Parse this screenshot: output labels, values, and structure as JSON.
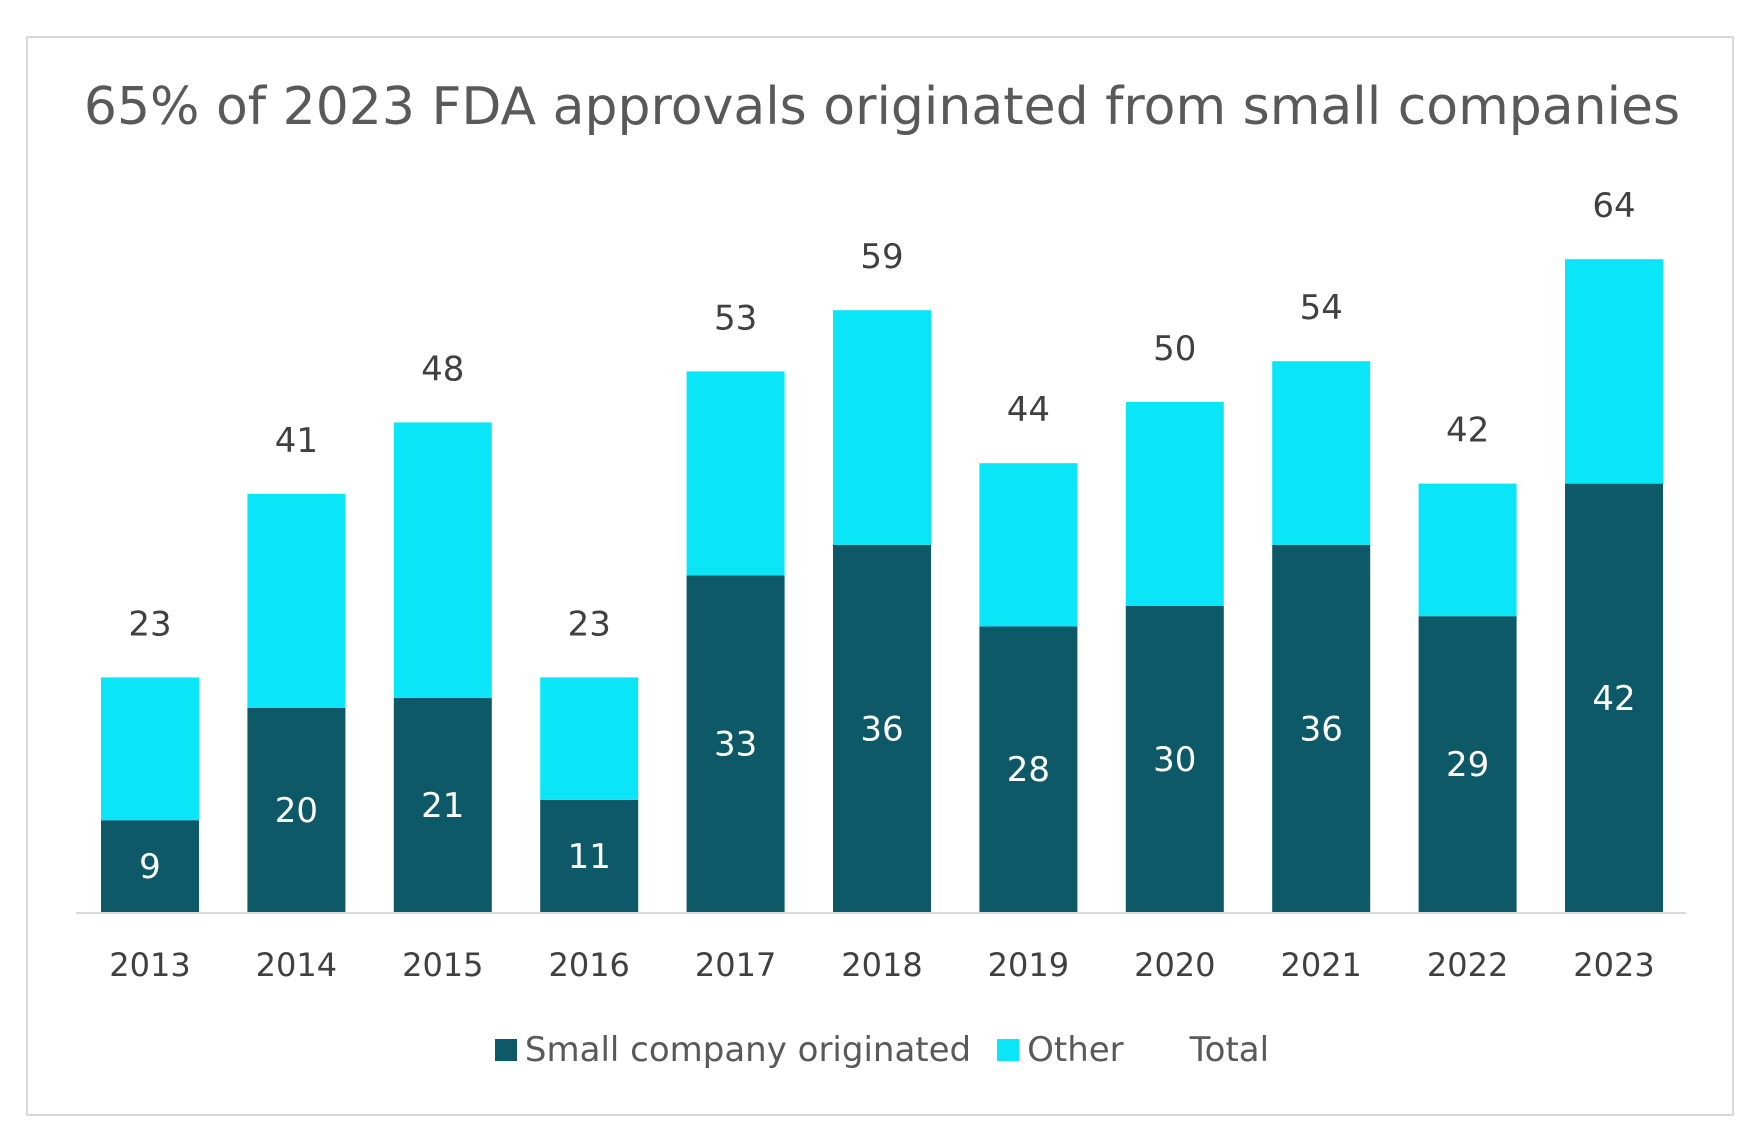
{
  "chart_data": {
    "type": "bar",
    "stacked": true,
    "title": "65% of 2023 FDA approvals originated from small companies",
    "categories": [
      "2013",
      "2014",
      "2015",
      "2016",
      "2017",
      "2018",
      "2019",
      "2020",
      "2021",
      "2022",
      "2023"
    ],
    "series": [
      {
        "name": "Small company originated",
        "values": [
          9,
          20,
          21,
          11,
          33,
          36,
          28,
          30,
          36,
          29,
          42
        ],
        "color": "#0e5968"
      },
      {
        "name": "Other",
        "values": [
          14,
          21,
          27,
          12,
          20,
          23,
          16,
          20,
          18,
          13,
          22
        ],
        "color": "#0ae6f7"
      }
    ],
    "totals": {
      "name": "Total",
      "values": [
        23,
        41,
        48,
        23,
        53,
        59,
        44,
        50,
        54,
        42,
        64
      ]
    },
    "ylim": [
      0,
      72
    ],
    "grid": false,
    "legend": "bottom",
    "axis_color": "#d9d9d9"
  }
}
